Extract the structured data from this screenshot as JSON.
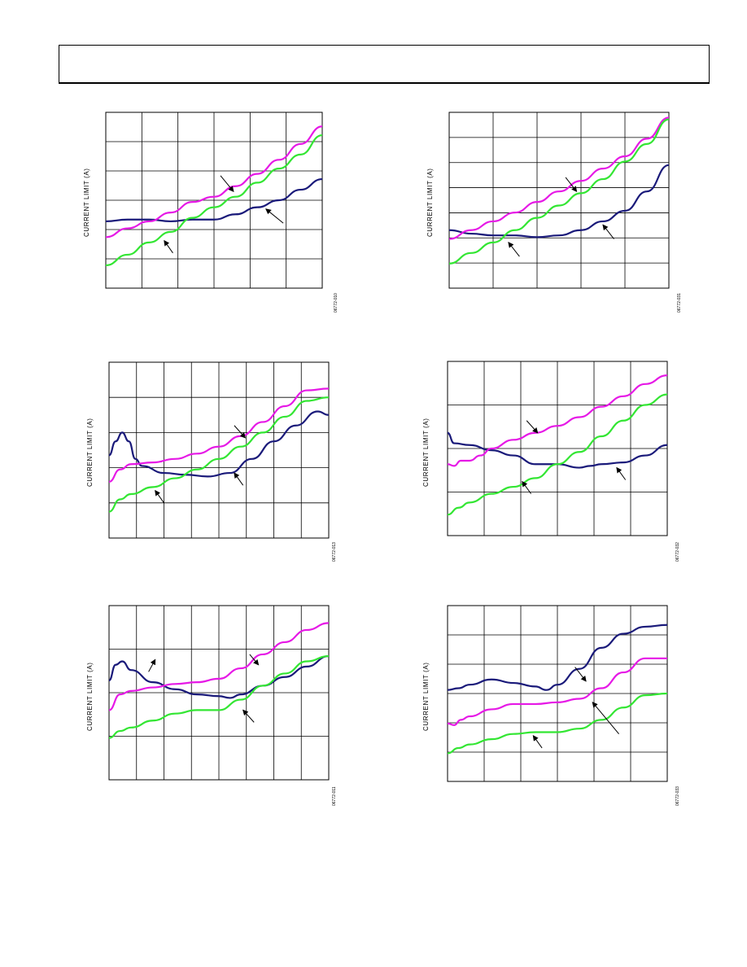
{
  "page": {
    "colors": {
      "blue": "#1a1a7a",
      "magenta": "#e619e6",
      "green": "#33e633",
      "grid": "#000000"
    }
  },
  "chart_data": [
    {
      "type": "line",
      "ylabel": "CURRENT LIMIT (A)",
      "figure_id": "06772-010",
      "grid": {
        "cols": 6,
        "rows": 6
      },
      "xlim": [
        0,
        1
      ],
      "ylim": [
        0,
        1
      ],
      "series": [
        {
          "color": "#1a1a7a",
          "x": [
            0,
            0.1,
            0.2,
            0.3,
            0.4,
            0.5,
            0.6,
            0.7,
            0.8,
            0.9,
            1.0
          ],
          "y": [
            0.38,
            0.39,
            0.39,
            0.38,
            0.39,
            0.39,
            0.42,
            0.46,
            0.5,
            0.56,
            0.62
          ]
        },
        {
          "color": "#e619e6",
          "x": [
            0,
            0.1,
            0.2,
            0.3,
            0.4,
            0.5,
            0.6,
            0.7,
            0.8,
            0.9,
            1.0
          ],
          "y": [
            0.29,
            0.34,
            0.38,
            0.43,
            0.49,
            0.52,
            0.58,
            0.65,
            0.73,
            0.82,
            0.92
          ]
        },
        {
          "color": "#33e633",
          "x": [
            0,
            0.1,
            0.2,
            0.3,
            0.4,
            0.5,
            0.6,
            0.7,
            0.8,
            0.9,
            1.0
          ],
          "y": [
            0.13,
            0.19,
            0.26,
            0.32,
            0.4,
            0.46,
            0.52,
            0.6,
            0.68,
            0.76,
            0.87
          ]
        }
      ],
      "arrows": [
        {
          "x1": 0.53,
          "y1": 0.64,
          "x2": 0.59,
          "y2": 0.55
        },
        {
          "x1": 0.82,
          "y1": 0.37,
          "x2": 0.74,
          "y2": 0.45
        },
        {
          "x1": 0.31,
          "y1": 0.2,
          "x2": 0.27,
          "y2": 0.27
        }
      ]
    },
    {
      "type": "line",
      "ylabel": "CURRENT LIMIT (A)",
      "figure_id": "06772-031",
      "grid": {
        "cols": 5,
        "rows": 7
      },
      "xlim": [
        0,
        1
      ],
      "ylim": [
        0,
        1
      ],
      "series": [
        {
          "color": "#1a1a7a",
          "x": [
            0,
            0.1,
            0.2,
            0.3,
            0.4,
            0.5,
            0.6,
            0.7,
            0.8,
            0.9,
            1.0
          ],
          "y": [
            0.33,
            0.31,
            0.3,
            0.3,
            0.29,
            0.3,
            0.33,
            0.38,
            0.44,
            0.55,
            0.7
          ]
        },
        {
          "color": "#e619e6",
          "x": [
            0,
            0.1,
            0.2,
            0.3,
            0.4,
            0.5,
            0.6,
            0.7,
            0.8,
            0.9,
            1.0
          ],
          "y": [
            0.28,
            0.33,
            0.38,
            0.43,
            0.49,
            0.55,
            0.61,
            0.68,
            0.75,
            0.85,
            0.97
          ]
        },
        {
          "color": "#33e633",
          "x": [
            0,
            0.1,
            0.2,
            0.3,
            0.4,
            0.5,
            0.6,
            0.7,
            0.8,
            0.9,
            1.0
          ],
          "y": [
            0.14,
            0.2,
            0.26,
            0.33,
            0.4,
            0.47,
            0.54,
            0.62,
            0.72,
            0.82,
            0.96
          ]
        }
      ],
      "arrows": [
        {
          "x1": 0.53,
          "y1": 0.63,
          "x2": 0.58,
          "y2": 0.55
        },
        {
          "x1": 0.75,
          "y1": 0.28,
          "x2": 0.7,
          "y2": 0.36
        },
        {
          "x1": 0.32,
          "y1": 0.18,
          "x2": 0.27,
          "y2": 0.26
        }
      ]
    },
    {
      "type": "line",
      "ylabel": "CURRENT LIMIT (A)",
      "figure_id": "06772-013",
      "grid": {
        "cols": 8,
        "rows": 5
      },
      "xlim": [
        0,
        1
      ],
      "ylim": [
        0,
        1
      ],
      "series": [
        {
          "color": "#1a1a7a",
          "x": [
            0,
            0.03,
            0.06,
            0.09,
            0.12,
            0.15,
            0.25,
            0.35,
            0.45,
            0.55,
            0.65,
            0.75,
            0.85,
            0.95,
            1.0
          ],
          "y": [
            0.47,
            0.55,
            0.6,
            0.55,
            0.45,
            0.41,
            0.37,
            0.36,
            0.35,
            0.37,
            0.45,
            0.55,
            0.64,
            0.72,
            0.7
          ]
        },
        {
          "color": "#e619e6",
          "x": [
            0,
            0.05,
            0.1,
            0.2,
            0.3,
            0.4,
            0.5,
            0.6,
            0.7,
            0.8,
            0.9,
            1.0
          ],
          "y": [
            0.32,
            0.39,
            0.42,
            0.43,
            0.45,
            0.48,
            0.52,
            0.58,
            0.66,
            0.75,
            0.84,
            0.85
          ]
        },
        {
          "color": "#33e633",
          "x": [
            0,
            0.05,
            0.1,
            0.2,
            0.3,
            0.4,
            0.5,
            0.6,
            0.7,
            0.8,
            0.9,
            1.0
          ],
          "y": [
            0.15,
            0.22,
            0.25,
            0.29,
            0.34,
            0.39,
            0.45,
            0.52,
            0.6,
            0.69,
            0.78,
            0.8
          ]
        }
      ],
      "arrows": [
        {
          "x1": 0.57,
          "y1": 0.64,
          "x2": 0.62,
          "y2": 0.57
        },
        {
          "x1": 0.61,
          "y1": 0.3,
          "x2": 0.57,
          "y2": 0.37
        },
        {
          "x1": 0.25,
          "y1": 0.2,
          "x2": 0.21,
          "y2": 0.27
        }
      ]
    },
    {
      "type": "line",
      "ylabel": "CURRENT LIMIT (A)",
      "figure_id": "06772-032",
      "grid": {
        "cols": 6,
        "rows": 4
      },
      "xlim": [
        0,
        1
      ],
      "ylim": [
        0,
        1
      ],
      "series": [
        {
          "color": "#1a1a7a",
          "x": [
            0,
            0.03,
            0.1,
            0.2,
            0.3,
            0.4,
            0.5,
            0.6,
            0.65,
            0.7,
            0.8,
            0.9,
            1.0
          ],
          "y": [
            0.59,
            0.53,
            0.52,
            0.49,
            0.46,
            0.41,
            0.41,
            0.39,
            0.4,
            0.41,
            0.42,
            0.46,
            0.52
          ]
        },
        {
          "color": "#e619e6",
          "x": [
            0,
            0.03,
            0.06,
            0.1,
            0.15,
            0.2,
            0.3,
            0.4,
            0.5,
            0.6,
            0.7,
            0.8,
            0.9,
            1.0
          ],
          "y": [
            0.41,
            0.4,
            0.43,
            0.43,
            0.46,
            0.5,
            0.55,
            0.59,
            0.63,
            0.68,
            0.74,
            0.8,
            0.87,
            0.92
          ]
        },
        {
          "color": "#33e633",
          "x": [
            0,
            0.05,
            0.1,
            0.2,
            0.3,
            0.4,
            0.5,
            0.6,
            0.7,
            0.8,
            0.9,
            1.0
          ],
          "y": [
            0.12,
            0.16,
            0.19,
            0.24,
            0.28,
            0.33,
            0.41,
            0.48,
            0.57,
            0.66,
            0.75,
            0.81
          ]
        }
      ],
      "arrows": [
        {
          "x1": 0.36,
          "y1": 0.66,
          "x2": 0.41,
          "y2": 0.59
        },
        {
          "x1": 0.38,
          "y1": 0.24,
          "x2": 0.34,
          "y2": 0.31
        },
        {
          "x1": 0.81,
          "y1": 0.32,
          "x2": 0.77,
          "y2": 0.39
        }
      ]
    },
    {
      "type": "line",
      "ylabel": "CURRENT LIMIT (A)",
      "figure_id": "06772-011",
      "grid": {
        "cols": 8,
        "rows": 4
      },
      "xlim": [
        0,
        1
      ],
      "ylim": [
        0,
        1
      ],
      "series": [
        {
          "color": "#1a1a7a",
          "x": [
            0,
            0.03,
            0.06,
            0.1,
            0.2,
            0.3,
            0.4,
            0.5,
            0.55,
            0.6,
            0.7,
            0.8,
            0.9,
            1.0
          ],
          "y": [
            0.57,
            0.66,
            0.68,
            0.63,
            0.56,
            0.52,
            0.49,
            0.48,
            0.47,
            0.49,
            0.54,
            0.59,
            0.65,
            0.71
          ]
        },
        {
          "color": "#e619e6",
          "x": [
            0,
            0.05,
            0.1,
            0.2,
            0.3,
            0.4,
            0.5,
            0.6,
            0.7,
            0.8,
            0.9,
            1.0
          ],
          "y": [
            0.4,
            0.49,
            0.51,
            0.53,
            0.55,
            0.56,
            0.58,
            0.64,
            0.72,
            0.79,
            0.86,
            0.9
          ]
        },
        {
          "color": "#33e633",
          "x": [
            0,
            0.05,
            0.1,
            0.2,
            0.3,
            0.4,
            0.5,
            0.6,
            0.7,
            0.8,
            0.9,
            1.0
          ],
          "y": [
            0.24,
            0.28,
            0.3,
            0.34,
            0.38,
            0.4,
            0.4,
            0.46,
            0.54,
            0.61,
            0.68,
            0.71
          ]
        }
      ],
      "arrows": [
        {
          "x1": 0.64,
          "y1": 0.72,
          "x2": 0.68,
          "y2": 0.66
        },
        {
          "x1": 0.66,
          "y1": 0.33,
          "x2": 0.61,
          "y2": 0.4
        },
        {
          "x1": 0.18,
          "y1": 0.62,
          "x2": 0.21,
          "y2": 0.69
        }
      ]
    },
    {
      "type": "line",
      "ylabel": "CURRENT LIMIT (A)",
      "figure_id": "06772-033",
      "grid": {
        "cols": 6,
        "rows": 6
      },
      "xlim": [
        0,
        1
      ],
      "ylim": [
        0,
        1
      ],
      "series": [
        {
          "color": "#1a1a7a",
          "x": [
            0,
            0.05,
            0.1,
            0.2,
            0.3,
            0.4,
            0.45,
            0.5,
            0.6,
            0.7,
            0.8,
            0.9,
            1.0
          ],
          "y": [
            0.52,
            0.53,
            0.55,
            0.58,
            0.56,
            0.54,
            0.52,
            0.55,
            0.64,
            0.76,
            0.84,
            0.88,
            0.89
          ]
        },
        {
          "color": "#e619e6",
          "x": [
            0,
            0.03,
            0.06,
            0.1,
            0.2,
            0.3,
            0.4,
            0.5,
            0.6,
            0.7,
            0.8,
            0.9,
            1.0
          ],
          "y": [
            0.33,
            0.32,
            0.35,
            0.37,
            0.41,
            0.44,
            0.44,
            0.45,
            0.47,
            0.53,
            0.62,
            0.7,
            0.7
          ]
        },
        {
          "color": "#33e633",
          "x": [
            0,
            0.05,
            0.1,
            0.2,
            0.3,
            0.4,
            0.5,
            0.6,
            0.7,
            0.8,
            0.9,
            1.0
          ],
          "y": [
            0.16,
            0.19,
            0.21,
            0.24,
            0.27,
            0.28,
            0.28,
            0.3,
            0.35,
            0.42,
            0.49,
            0.5
          ]
        }
      ],
      "arrows": [
        {
          "x1": 0.58,
          "y1": 0.65,
          "x2": 0.63,
          "y2": 0.57
        },
        {
          "x1": 0.78,
          "y1": 0.27,
          "x2": 0.66,
          "y2": 0.45
        },
        {
          "x1": 0.43,
          "y1": 0.19,
          "x2": 0.39,
          "y2": 0.26
        }
      ]
    }
  ]
}
